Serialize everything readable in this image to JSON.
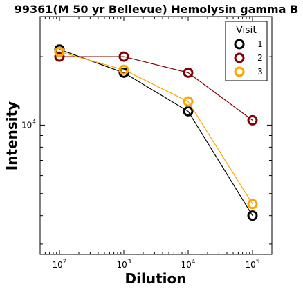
{
  "chart_data": {
    "type": "line",
    "title": "99361(M 50 yr Bellevue) Hemolysin gamma B",
    "xlabel": "Dilution",
    "ylabel": "Intensity",
    "x_scale": "log",
    "y_scale": "log",
    "x": [
      100,
      1000,
      10000,
      100000
    ],
    "xlim": [
      50,
      200000
    ],
    "ylim": [
      2700,
      30000
    ],
    "x_tick_labels": [
      {
        "value": 100,
        "base": "10",
        "exp": "2"
      },
      {
        "value": 1000,
        "base": "10",
        "exp": "3"
      },
      {
        "value": 10000,
        "base": "10",
        "exp": "4"
      },
      {
        "value": 100000,
        "base": "10",
        "exp": "5"
      }
    ],
    "y_tick_labels": [
      {
        "value": 10000,
        "base": "10",
        "exp": "4"
      }
    ],
    "legend": {
      "title": "Visit",
      "position": "top-right"
    },
    "grid": false,
    "series": [
      {
        "name": "1",
        "color": "#000000",
        "values": [
          21500,
          17000,
          11500,
          4000
        ]
      },
      {
        "name": "2",
        "color": "#800000",
        "values": [
          20000,
          20000,
          17000,
          10500
        ]
      },
      {
        "name": "3",
        "color": "#FFA500",
        "values": [
          21000,
          17500,
          12700,
          4500
        ]
      }
    ]
  }
}
